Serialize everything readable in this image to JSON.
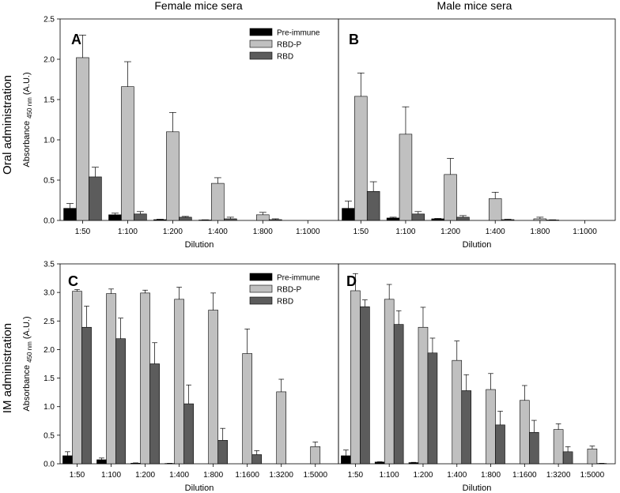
{
  "figure": {
    "col_titles": [
      "Female mice sera",
      "Male mice sera"
    ],
    "row_titles": [
      "Oral administration",
      "IM administration"
    ]
  },
  "colors": {
    "Pre-immune": "#000000",
    "RBD-P": "#c0c0c0",
    "RBD": "#5c5c5c",
    "edge": "#000000"
  },
  "chart_data": [
    {
      "panel": "A",
      "type": "bar",
      "xlabel": "Dilution",
      "ylabel_main": "Absorbance",
      "ylabel_sub": "450 nm",
      "ylabel_unit": "(A.U.)",
      "ylim": [
        0,
        2.5
      ],
      "yticks": [
        "0.0",
        "0.5",
        "1.0",
        "1.5",
        "2.0",
        "2.5"
      ],
      "categories": [
        "1:50",
        "1:100",
        "1:200",
        "1:400",
        "1:800",
        "1:1000"
      ],
      "legend": true,
      "series": [
        {
          "name": "Pre-immune",
          "values": [
            0.15,
            0.07,
            0.01,
            0.005,
            0.0,
            0.0
          ],
          "errors": [
            0.06,
            0.02,
            0.005,
            0.003,
            0.0,
            0.0
          ]
        },
        {
          "name": "RBD-P",
          "values": [
            2.02,
            1.66,
            1.1,
            0.46,
            0.07,
            0.0
          ],
          "errors": [
            0.28,
            0.31,
            0.24,
            0.07,
            0.03,
            0.0
          ]
        },
        {
          "name": "RBD",
          "values": [
            0.54,
            0.08,
            0.04,
            0.02,
            0.01,
            0.0
          ],
          "errors": [
            0.12,
            0.03,
            0.01,
            0.02,
            0.01,
            0.0
          ]
        }
      ]
    },
    {
      "panel": "B",
      "type": "bar",
      "xlabel": "Dilution",
      "ylim": [
        0,
        2.5
      ],
      "categories": [
        "1:50",
        "1:100",
        "1:200",
        "1:400",
        "1:800",
        "1:1000"
      ],
      "legend": false,
      "series": [
        {
          "name": "Pre-immune",
          "values": [
            0.15,
            0.03,
            0.02,
            0.0,
            0.0,
            0.0
          ],
          "errors": [
            0.09,
            0.01,
            0.005,
            0.0,
            0.0,
            0.0
          ]
        },
        {
          "name": "RBD-P",
          "values": [
            1.54,
            1.07,
            0.57,
            0.27,
            0.02,
            0.0
          ],
          "errors": [
            0.29,
            0.34,
            0.2,
            0.08,
            0.02,
            0.0
          ]
        },
        {
          "name": "RBD",
          "values": [
            0.36,
            0.08,
            0.04,
            0.01,
            0.005,
            0.0
          ],
          "errors": [
            0.12,
            0.03,
            0.02,
            0.005,
            0.003,
            0.0
          ]
        }
      ]
    },
    {
      "panel": "C",
      "type": "bar",
      "xlabel": "Dilution",
      "ylabel_main": "Absorbance",
      "ylabel_sub": "450 nm",
      "ylabel_unit": "(A.U.)",
      "ylim": [
        0,
        3.5
      ],
      "yticks": [
        "0.0",
        "0.5",
        "1.0",
        "1.5",
        "2.0",
        "2.5",
        "3.0",
        "3.5"
      ],
      "categories": [
        "1:50",
        "1:100",
        "1:200",
        "1:400",
        "1:800",
        "1:1600",
        "1:3200",
        "1:5000"
      ],
      "legend": true,
      "series": [
        {
          "name": "Pre-immune",
          "values": [
            0.14,
            0.07,
            0.01,
            0.005,
            0.0,
            0.0,
            0.0,
            0.0
          ],
          "errors": [
            0.07,
            0.03,
            0.005,
            0.003,
            0.0,
            0.0,
            0.0,
            0.0
          ]
        },
        {
          "name": "RBD-P",
          "values": [
            3.02,
            2.98,
            2.99,
            2.88,
            2.69,
            1.93,
            1.26,
            0.3
          ],
          "errors": [
            0.03,
            0.08,
            0.05,
            0.21,
            0.3,
            0.43,
            0.22,
            0.08
          ]
        },
        {
          "name": "RBD",
          "values": [
            2.39,
            2.19,
            1.75,
            1.05,
            0.41,
            0.16,
            0.0,
            0.0
          ],
          "errors": [
            0.37,
            0.36,
            0.37,
            0.33,
            0.21,
            0.07,
            0.0,
            0.0
          ]
        }
      ]
    },
    {
      "panel": "D",
      "type": "bar",
      "xlabel": "Dilution",
      "ylim": [
        0,
        3.5
      ],
      "categories": [
        "1:50",
        "1:100",
        "1:200",
        "1:400",
        "1:800",
        "1:1600",
        "1:3200",
        "1:5000"
      ],
      "legend": false,
      "series": [
        {
          "name": "Pre-immune",
          "values": [
            0.14,
            0.03,
            0.02,
            0.0,
            0.0,
            0.0,
            0.0,
            0.0
          ],
          "errors": [
            0.1,
            0.005,
            0.005,
            0.0,
            0.0,
            0.0,
            0.0,
            0.0
          ]
        },
        {
          "name": "RBD-P",
          "values": [
            3.03,
            2.88,
            2.39,
            1.81,
            1.3,
            1.11,
            0.6,
            0.26
          ],
          "errors": [
            0.3,
            0.26,
            0.35,
            0.34,
            0.28,
            0.26,
            0.1,
            0.05
          ]
        },
        {
          "name": "RBD",
          "values": [
            2.75,
            2.44,
            1.94,
            1.28,
            0.68,
            0.55,
            0.21,
            0.005
          ],
          "errors": [
            0.12,
            0.24,
            0.26,
            0.28,
            0.24,
            0.21,
            0.09,
            0.003
          ]
        }
      ]
    }
  ]
}
